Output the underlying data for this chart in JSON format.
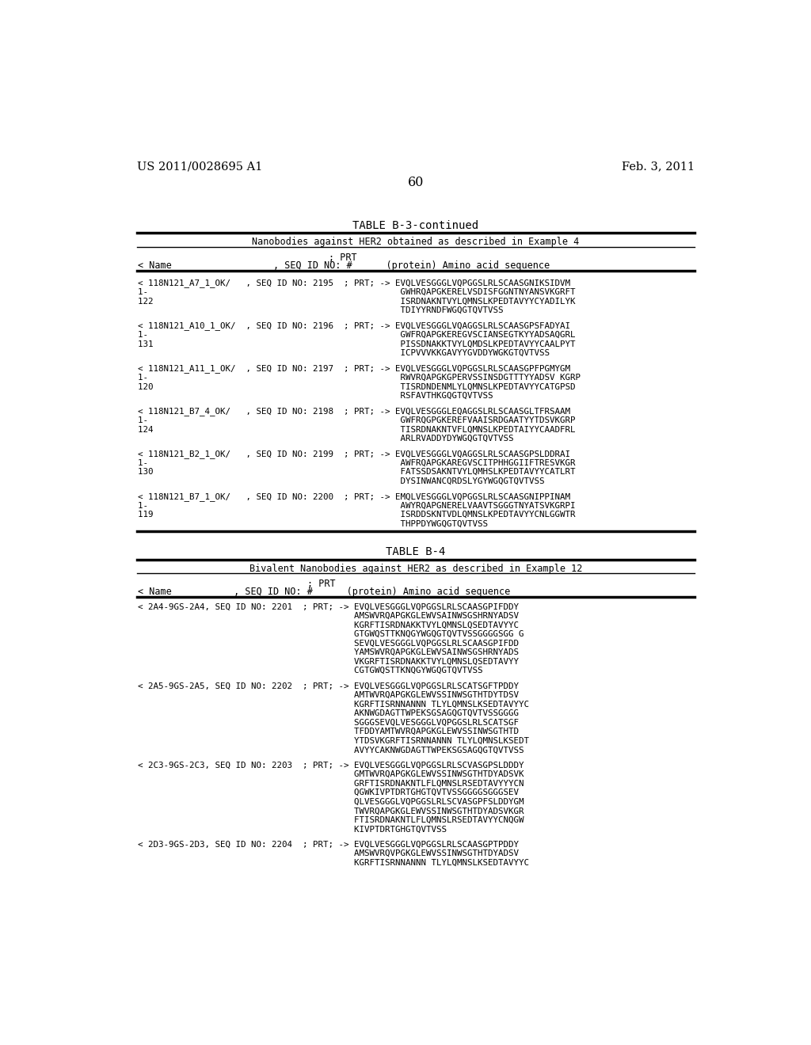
{
  "header_left": "US 2011/0028695 A1",
  "header_right": "Feb. 3, 2011",
  "page_number": "60",
  "bg_color": "#ffffff",
  "text_color": "#000000",
  "sections": [
    {
      "type": "header"
    },
    {
      "type": "table",
      "title": "TABLE B-3-continued",
      "subtitle": "Nanobodies against HER2 obtained as described in Example 4",
      "col_prt": "               ; PRT",
      "col_header": "< Name                  , SEQ ID NO: #      (protein) Amino acid sequence",
      "entries": [
        [
          "< 118N121_A7_1_OK/   , SEQ ID NO: 2195  ; PRT; -> EVQLVESGGGLVQPGGSLRLSCAASGNIKSIDVM",
          "1-                                                 GWHRQAPGKERELVSDISFGGNTNYANSVKGRFT",
          "122                                                ISRDNAKNTVYLQMNSLKPEDTAVYYCYADILYK",
          "                                                   TDIYYRNDFWGQGTQVTVSS"
        ],
        [
          "< 118N121_A10_1_OK/  , SEQ ID NO: 2196  ; PRT; -> EVQLVESGGGLVQAGGSLRLSCAASGPSFADYAI",
          "1-                                                 GWFRQAPGKEREGVSCIANSEGTKYYADSAQGRL",
          "131                                                PISSDNAKKTVYLQMDSLKPEDTAVYYCAALPYT",
          "                                                   ICPVVVKKGAVYYGVDDYWGKGTQVTVSS"
        ],
        [
          "< 118N121_A11_1_OK/  , SEQ ID NO: 2197  ; PRT; -> EVQLVESGGGLVQPGGSLRLSCAASGPFPGMYGM",
          "1-                                                 RWVRQAPGKGPERVSSINSDGTTTYYADSV KGRP",
          "120                                                TISRDNDENMLYLQMNSLKPEDTAVYYCATGPSD",
          "                                                   RSFAVTHKGQGTQVTVSS"
        ],
        [
          "< 118N121_B7_4_OK/   , SEQ ID NO: 2198  ; PRT; -> EVQLVESGGGLEQAGGSLRLSCAASGLTFRSAAM",
          "1-                                                 GWFRQGPGKEREFVAAISRDGAATYYTDSVKGRP",
          "124                                                TISRDNAKNTVFLQMNSLKPEDTAIYYCAADFRL",
          "                                                   ARLRVADDYDYWGQGTQVTVSS"
        ],
        [
          "< 118N121_B2_1_OK/   , SEQ ID NO: 2199  ; PRT; -> EVQLVESGGGLVQAGGSLRLSCAASGPSLDDRAI",
          "1-                                                 AWFRQAPGKAREGVSCITPHHGGIIFTRESVKGR",
          "130                                                FATSSDSAKNTVYLQMHSLKPEDTAVYYCATLRT",
          "                                                   DYSINWANCQRDSLYGYWGQGTQVTVSS"
        ],
        [
          "< 118N121_B7_1_OK/   , SEQ ID NO: 2200  ; PRT; -> EMQLVESGGGLVQPGGSLRLSCAASGNIPPINAM",
          "1-                                                 AWYRQAPGNERELVAAVTSGGGTN YATSVKGRPI",
          "119                                                ISRDDSKNTVDLQMNSLKPEDTAVYYCNLGGWTR",
          "                                                   THPPDYWGQGTQVTVSS"
        ]
      ]
    },
    {
      "type": "table",
      "title": "TABLE B-4",
      "subtitle": "Bivalent Nanobodies against HER2 as described in Example 12",
      "col_prt": "               ; PRT",
      "col_header": "< Name           , SEQ ID NO: #      (protein) Amino acid sequence",
      "entries": [
        [
          "< 2A4-9GS-2A4, SEQ ID NO: 2201  ; PRT; -> EVQLVESGGGLVQPGGSLRLSCAASGPIFDDY",
          "                                          AMSWVRQAPGKGLEWVSAINWSGSHRNYADSV",
          "                                          KGRFTISRDNAKKTVYLQMNSLQSEDTAVYYC",
          "                                          GTGWQSTTKNQGYWGQGTQVTVSSGGGGSGG G",
          "                                          SEVQLVESGGGLVQPGGSLRLSCAASGPIFDD",
          "                                          YAMSWVRQAPGKGLEWVSAINWSGSHRNYADS",
          "                                          VKGRFTISRDNAKKTVYLQMNSLQSEDTAVYY",
          "                                          CGTGWQSTTKNQGYWGQGTQVTVSS"
        ],
        [
          "< 2A5-9GS-2A5, SEQ ID NO: 2202  ; PRT; -> EVQLVESGGGLVQPGGSLRLSCATSGFTPDDY",
          "                                          AMTWVRQAPGKGLEWVSSINWSGTHTDYTDSV",
          "                                          KGRFTISRNNANNN TLYLQMNSLKSEDTAVYYC",
          "                                          AKNWGDAGTTWPEKSGSAGQGTQVTVSSGGGG",
          "                                          SGGGSEVQLVESGGGLVQPGGSLRLSCATSGF",
          "                                          TFDDYAMTWVRQAPGKGLEWVSSINWSGTHTD",
          "                                          YTDSVKGRFTISRNNANNN TLYLQMNSLKSEDT",
          "                                          AVYYCAKNWGDAGTTWPEKSGSAGQGTQVTVSS"
        ],
        [
          "< 2C3-9GS-2C3, SEQ ID NO: 2203  ; PRT; -> EVQLVESGGGLVQPGGSLRLSCVASGPSLDDDY",
          "                                          GMTWVRQAPGKGLEWVSSINWSGTHTDYADSVK",
          "                                          GRFTISRDNAKNTLFLQMNSLRSEDTAVYYYCN",
          "                                          QGWKIVPTDRTGHGTQVTVSSGGGGSGGGSEV",
          "                                          QLVESGGGLVQPGGSLRLSCVASGPFSLDDYGM",
          "                                          TWVRQAPGKGLEWVSSINWSGTHTDYADSVKGR",
          "                                          FTISRDNAKNTLFLQMNSLRSEDTAVYYCNQGW",
          "                                          KIVPTDRTGHGTQVTVSS"
        ],
        [
          "< 2D3-9GS-2D3, SEQ ID NO: 2204  ; PRT; -> EVQLVESGGGLVQPGGSLRLSCAASGPTPDDY",
          "                                          AMSWVRQVPGKGLEWVSSINWSGTHTDYADSV",
          "                                          KGRFTISRNNANNN TLYLQMNSLKSEDTAVYYC"
        ]
      ]
    }
  ]
}
